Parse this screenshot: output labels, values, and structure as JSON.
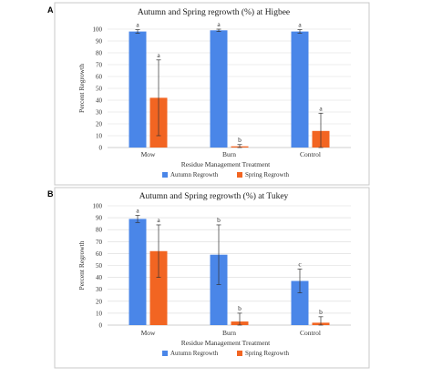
{
  "chart_data": [
    {
      "panel": "A",
      "type": "bar",
      "title": "Autumn and Spring regrowth (%) at Higbee",
      "xlabel": "Residue Management Treatment",
      "ylabel": "Percent Regrowth",
      "ylim": [
        0,
        100
      ],
      "yticks": [
        0,
        10,
        20,
        30,
        40,
        50,
        60,
        70,
        80,
        90,
        100
      ],
      "grid": true,
      "legend": "bottom",
      "categories": [
        "Mow",
        "Burn",
        "Control"
      ],
      "series": [
        {
          "name": "Autumn Regrowth",
          "color": "#4a86e8",
          "values": [
            98,
            99,
            98
          ],
          "error": [
            1.5,
            1,
            1.5
          ],
          "labels": [
            "a",
            "a",
            "a"
          ]
        },
        {
          "name": "Spring Regrowth",
          "color": "#f26522",
          "values": [
            42,
            1,
            14
          ],
          "error": [
            32,
            1.5,
            15
          ],
          "labels": [
            "a",
            "b",
            "a"
          ]
        }
      ]
    },
    {
      "panel": "B",
      "type": "bar",
      "title": "Autumn and Spring regrowth (%) at Tukey",
      "xlabel": "Residue Management Treatment",
      "ylabel": "Percent Regrowth",
      "ylim": [
        0,
        100
      ],
      "yticks": [
        0,
        10,
        20,
        30,
        40,
        50,
        60,
        70,
        80,
        90,
        100
      ],
      "grid": true,
      "legend": "bottom",
      "categories": [
        "Mow",
        "Burn",
        "Control"
      ],
      "series": [
        {
          "name": "Autumn Regrowth",
          "color": "#4a86e8",
          "values": [
            89,
            59,
            37
          ],
          "error": [
            3,
            25,
            10
          ],
          "labels": [
            "a",
            "b",
            "c"
          ]
        },
        {
          "name": "Spring Regrowth",
          "color": "#f26522",
          "values": [
            62,
            3,
            2
          ],
          "error": [
            22,
            7,
            5
          ],
          "labels": [
            "a",
            "b",
            "b"
          ]
        }
      ]
    }
  ]
}
